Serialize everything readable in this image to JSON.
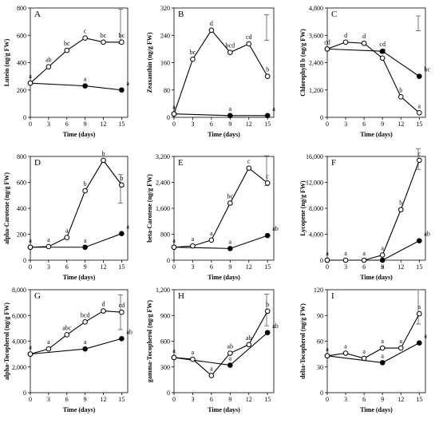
{
  "figure": {
    "x_ticks": [
      "0",
      "3",
      "6",
      "9",
      "12",
      "15"
    ],
    "x_values": [
      0,
      3,
      6,
      9,
      12,
      15
    ],
    "xlabel": "Time (days)"
  },
  "chart_data": [
    {
      "type": "line",
      "panel": "A",
      "ylabel": "Lutein (ng/g FW)",
      "ylim": [
        0,
        800
      ],
      "yticks": [
        0,
        200,
        400,
        600,
        800
      ],
      "ytick_labels": [
        "0",
        "200",
        "400",
        "600",
        "800"
      ],
      "series": [
        {
          "marker": "open-circle",
          "x": [
            0,
            3,
            6,
            9,
            12,
            15
          ],
          "values": [
            250,
            370,
            490,
            580,
            550,
            550
          ],
          "labels": [
            "a",
            "ab",
            "bc",
            "c",
            "bc",
            "bc"
          ]
        },
        {
          "marker": "filled-circle",
          "x": [
            0,
            9,
            15
          ],
          "values": [
            250,
            230,
            200
          ],
          "labels": [
            "",
            "a",
            "a"
          ]
        }
      ],
      "error_bar": {
        "low": 540,
        "high": 790
      }
    },
    {
      "type": "line",
      "panel": "B",
      "ylabel": "Zeaxanthin (ng/g FW)",
      "ylim": [
        0,
        320
      ],
      "yticks": [
        0,
        80,
        160,
        240,
        320
      ],
      "ytick_labels": [
        "0",
        "80",
        "160",
        "240",
        "320"
      ],
      "series": [
        {
          "marker": "open-circle",
          "x": [
            0,
            3,
            6,
            9,
            12,
            15
          ],
          "values": [
            10,
            170,
            255,
            190,
            215,
            120
          ],
          "labels": [
            "a",
            "bc",
            "d",
            "bcd",
            "cd",
            "b"
          ]
        },
        {
          "marker": "filled-circle",
          "x": [
            0,
            9,
            15
          ],
          "values": [
            10,
            5,
            5
          ],
          "labels": [
            "",
            "a",
            "a"
          ]
        }
      ],
      "error_bar": {
        "low": 225,
        "high": 300
      }
    },
    {
      "type": "line",
      "panel": "C",
      "ylabel": "Chlorophyll b (ng/g FW)",
      "ylim": [
        0,
        4800
      ],
      "yticks": [
        0,
        1200,
        2400,
        3600,
        4800
      ],
      "ytick_labels": [
        "0",
        "1,200",
        "2,400",
        "3,600",
        "4,800"
      ],
      "series": [
        {
          "marker": "open-circle",
          "x": [
            0,
            3,
            6,
            9,
            12,
            15
          ],
          "values": [
            3000,
            3300,
            3250,
            2600,
            900,
            200
          ],
          "labels": [
            "cd",
            "d",
            "d",
            "cd",
            "b",
            "a"
          ]
        },
        {
          "marker": "filled-circle",
          "x": [
            0,
            9,
            15
          ],
          "values": [
            3000,
            2900,
            1800
          ],
          "labels": [
            "",
            "cd",
            "bc"
          ]
        }
      ],
      "error_bar": {
        "low": 3800,
        "high": 4450
      }
    },
    {
      "type": "line",
      "panel": "D",
      "ylabel": "alpha-Carotene (ng/g FW)",
      "ylim": [
        0,
        800
      ],
      "yticks": [
        0,
        200,
        400,
        600,
        800
      ],
      "ytick_labels": [
        "0",
        "200",
        "400",
        "600",
        "800"
      ],
      "series": [
        {
          "marker": "open-circle",
          "x": [
            0,
            3,
            6,
            9,
            12,
            15
          ],
          "values": [
            100,
            105,
            175,
            535,
            770,
            580
          ],
          "labels": [
            "a",
            "a",
            "a",
            "b",
            "b",
            "b"
          ]
        },
        {
          "marker": "filled-circle",
          "x": [
            0,
            9,
            15
          ],
          "values": [
            100,
            100,
            205
          ],
          "labels": [
            "",
            "a",
            "a"
          ]
        }
      ],
      "error_bar": {
        "low": 440,
        "high": 660
      }
    },
    {
      "type": "line",
      "panel": "E",
      "ylabel": "beta-Carotene (ng/g FW)",
      "ylim": [
        0,
        3200
      ],
      "yticks": [
        0,
        800,
        1600,
        2400,
        3200
      ],
      "ytick_labels": [
        "0",
        "800",
        "1,600",
        "2,400",
        "3,200"
      ],
      "series": [
        {
          "marker": "open-circle",
          "x": [
            0,
            3,
            6,
            9,
            12,
            15
          ],
          "values": [
            400,
            440,
            620,
            1760,
            2840,
            2380
          ],
          "labels": [
            "a",
            "a",
            "a",
            "bc",
            "c",
            "c"
          ]
        },
        {
          "marker": "filled-circle",
          "x": [
            0,
            9,
            15
          ],
          "values": [
            400,
            360,
            760
          ],
          "labels": [
            "",
            "a",
            "ab"
          ]
        }
      ],
      "error_bar": {
        "low": 2300,
        "high": 3220
      }
    },
    {
      "type": "line",
      "panel": "F",
      "ylabel": "Lycopene (ng/g FW)",
      "ylim": [
        0,
        16000
      ],
      "yticks": [
        0,
        4000,
        8000,
        12000,
        16000
      ],
      "ytick_labels": [
        "0",
        "4,000",
        "8,000",
        "12,000",
        "16,000"
      ],
      "series": [
        {
          "marker": "open-circle",
          "x": [
            0,
            3,
            6,
            9,
            12,
            15
          ],
          "values": [
            0,
            0,
            0,
            800,
            7800,
            15400
          ],
          "labels": [
            "a",
            "a",
            "a",
            "a",
            "b",
            "c"
          ]
        },
        {
          "marker": "filled-circle",
          "x": [
            0,
            9,
            15
          ],
          "values": [
            0,
            0,
            3000
          ],
          "labels": [
            "",
            "a",
            "ab"
          ]
        }
      ],
      "error_bar": {
        "low": 14000,
        "high": 17200
      }
    },
    {
      "type": "line",
      "panel": "G",
      "ylabel": "alpha-Tocopherol (ng/g FW)",
      "ylim": [
        0,
        8000
      ],
      "yticks": [
        0,
        2000,
        4000,
        6000,
        8000
      ],
      "ytick_labels": [
        "0",
        "2,000",
        "4,000",
        "6,000",
        "8,000"
      ],
      "series": [
        {
          "marker": "open-circle",
          "x": [
            0,
            3,
            6,
            9,
            12,
            15
          ],
          "values": [
            3000,
            3400,
            4500,
            5500,
            6350,
            6250
          ],
          "labels": [
            "a",
            "a",
            "abc",
            "bcd",
            "d",
            "cd"
          ]
        },
        {
          "marker": "filled-circle",
          "x": [
            0,
            9,
            15
          ],
          "values": [
            3000,
            3400,
            4200
          ],
          "labels": [
            "",
            "a",
            "ab"
          ]
        }
      ],
      "error_bar": {
        "low": 4900,
        "high": 7600
      }
    },
    {
      "type": "line",
      "panel": "H",
      "ylabel": "gamma-Tocopherol (ng/g FW)",
      "ylim": [
        0,
        1200
      ],
      "yticks": [
        0,
        300,
        600,
        900,
        1200
      ],
      "ytick_labels": [
        "0",
        "300",
        "600",
        "900",
        "1,200"
      ],
      "series": [
        {
          "marker": "open-circle",
          "x": [
            0,
            3,
            6,
            9,
            12,
            15
          ],
          "values": [
            410,
            390,
            200,
            460,
            560,
            950
          ],
          "labels": [
            "a",
            "a",
            "a",
            "ab",
            "ab",
            "b"
          ]
        },
        {
          "marker": "filled-circle",
          "x": [
            0,
            9,
            15
          ],
          "values": [
            410,
            320,
            700
          ],
          "labels": [
            "",
            "a",
            "ab"
          ]
        }
      ],
      "error_bar": {
        "low": 780,
        "high": 1150
      }
    },
    {
      "type": "line",
      "panel": "I",
      "ylabel": "delta-Tocopherol (ng/g FW)",
      "ylim": [
        0,
        120
      ],
      "yticks": [
        0,
        30,
        60,
        90,
        120
      ],
      "ytick_labels": [
        "0",
        "30",
        "60",
        "90",
        "120"
      ],
      "series": [
        {
          "marker": "open-circle",
          "x": [
            0,
            3,
            6,
            9,
            12,
            15
          ],
          "values": [
            43,
            46,
            40,
            52,
            52,
            92
          ],
          "labels": [
            "a",
            "a",
            "a",
            "a",
            "a",
            "a"
          ]
        },
        {
          "marker": "filled-circle",
          "x": [
            0,
            9,
            15
          ],
          "values": [
            43,
            35,
            58
          ],
          "labels": [
            "",
            "a",
            "a"
          ]
        }
      ],
      "error_bar": {
        "low": 80,
        "high": 120
      }
    }
  ]
}
